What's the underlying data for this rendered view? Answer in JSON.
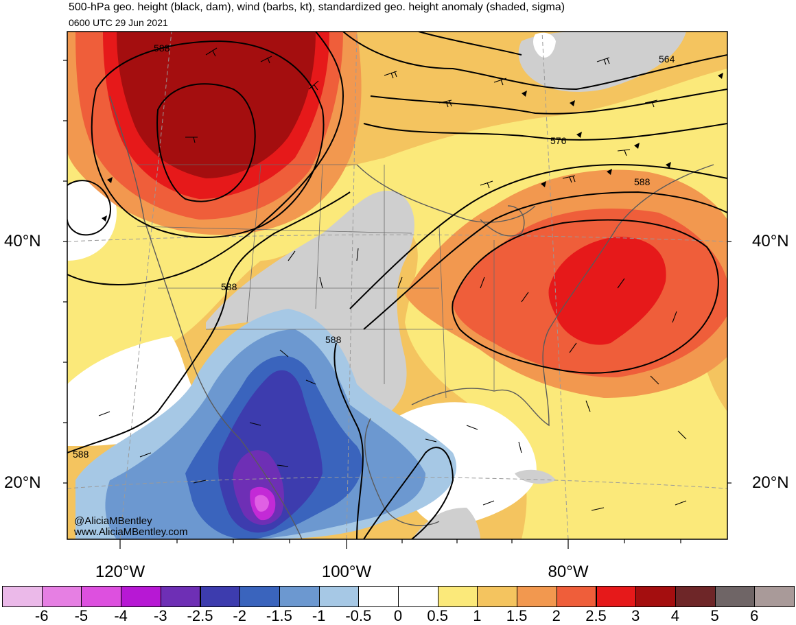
{
  "header": {
    "title": "500-hPa geo. height (black, dam), wind (barbs, kt), standardized geo. height anomaly (shaded, sigma)",
    "valid_time": "0600 UTC 29 Jun 2021"
  },
  "map": {
    "lat_labels": [
      "40°N",
      "20°N"
    ],
    "lon_labels": [
      "120°W",
      "100°W",
      "80°W"
    ],
    "contour_labels": [
      "588",
      "564",
      "576",
      "588",
      "588",
      "588",
      "588"
    ],
    "credit": {
      "handle": "@AliciaMBentley",
      "website": "www.AliciaMBentley.com"
    }
  },
  "colorbar": {
    "unit": "sigma",
    "colors": [
      "#ebb9e9",
      "#e67fe3",
      "#dd50df",
      "#b718d4",
      "#6e2fb5",
      "#3d3cae",
      "#3a64bd",
      "#6c98d0",
      "#a6c8e5",
      "#ffffff",
      "#ffffff",
      "#fbe97a",
      "#f4c45f",
      "#f2984f",
      "#ef5e3a",
      "#e6191a",
      "#a40e0f",
      "#6e2628",
      "#6f6566",
      "#a99a99"
    ],
    "tick_labels": [
      "-6",
      "-5",
      "-4",
      "-3",
      "-2.5",
      "-2",
      "-1.5",
      "-1",
      "-0.5",
      "0",
      "0.5",
      "1",
      "1.5",
      "2",
      "2.5",
      "3",
      "4",
      "5",
      "6"
    ]
  }
}
